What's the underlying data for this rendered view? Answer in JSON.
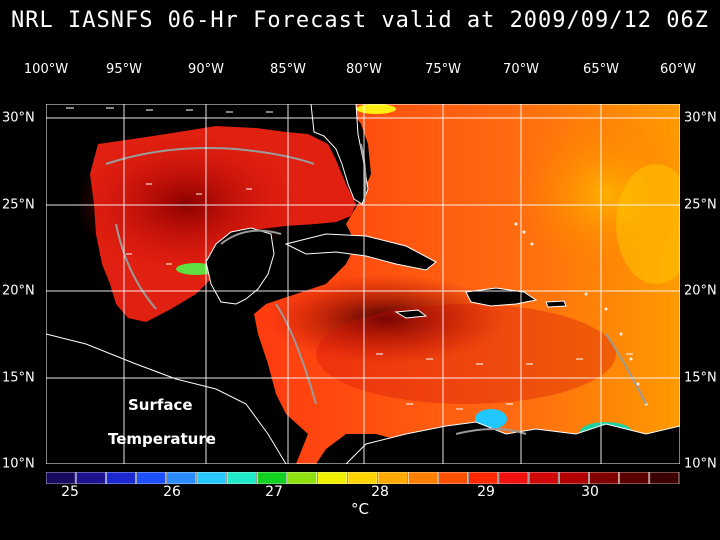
{
  "title": "NRL IASNFS  06-Hr Forecast valid at 2009/09/12 06Z",
  "lon_labels": [
    "100°W",
    "95°W",
    "90°W",
    "85°W",
    "80°W",
    "75°W",
    "70°W",
    "65°W",
    "60°W"
  ],
  "lat_labels": [
    "30°N",
    "25°N",
    "20°N",
    "15°N",
    "10°N"
  ],
  "overlay_text": [
    "Surface",
    "Temperature"
  ],
  "colorbar": {
    "tick_labels": [
      "25",
      "26",
      "27",
      "28",
      "29",
      "30"
    ],
    "unit": "°C",
    "colors": [
      "#1a0a5e",
      "#1e1490",
      "#1a2ad0",
      "#1e50ff",
      "#2a8cff",
      "#28c8ff",
      "#20e8c8",
      "#10d020",
      "#90e010",
      "#f0f000",
      "#ffd400",
      "#ffaa00",
      "#ff8000",
      "#ff5000",
      "#ff2800",
      "#f01010",
      "#d00808",
      "#b00000",
      "#800000",
      "#5a0000",
      "#3a0000"
    ]
  },
  "colors": {
    "water": "#e62010",
    "land": "#000000",
    "coast": "#ffffff",
    "isobath": "#8a8a8a"
  }
}
